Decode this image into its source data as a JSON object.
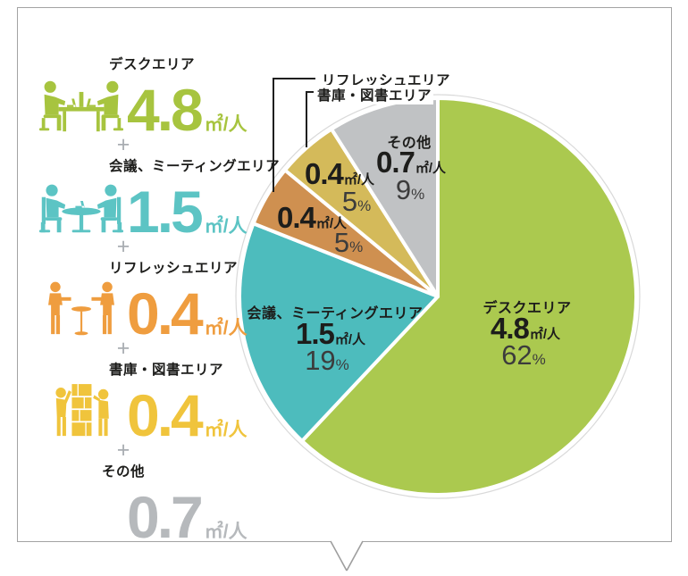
{
  "labels": {
    "plus": "+",
    "percent_sign": "%"
  },
  "panel": {
    "shape": "speech-bubble",
    "border_color": "#a3a3a3"
  },
  "chart_data": {
    "type": "pie",
    "title": "",
    "direction": "clockwise",
    "start_angle_deg_from_top": 0,
    "legend_position": "left",
    "slices": [
      {
        "key": "desk-area",
        "label": "デスクエリア",
        "value_text": "4.8",
        "unit": "㎡/人",
        "percent": 62,
        "color": "#abc94f",
        "legend_color": "#a7c43f",
        "icon": "desk-workers-icon"
      },
      {
        "key": "meeting-area",
        "label": "会議、ミーティングエリア",
        "value_text": "1.5",
        "unit": "㎡/人",
        "percent": 19,
        "color": "#4dbcbd",
        "legend_color": "#5cc4c4",
        "icon": "meeting-table-icon"
      },
      {
        "key": "refresh-area",
        "label": "リフレッシュエリア",
        "value_text": "0.4",
        "unit": "㎡/人",
        "percent": 5,
        "color": "#cf9050",
        "legend_color": "#ef9d3f",
        "icon": "standing-table-icon"
      },
      {
        "key": "library-area",
        "label": "書庫・図書エリア",
        "value_text": "0.4",
        "unit": "㎡/人",
        "percent": 5,
        "color": "#d4ba5a",
        "legend_color": "#f0c43c",
        "icon": "bookshelf-icon"
      },
      {
        "key": "other",
        "label": "その他",
        "value_text": "0.7",
        "unit": "㎡/人",
        "percent": 9,
        "color": "#c0c2c4",
        "legend_color": "#b6b9bc",
        "icon": null
      }
    ]
  }
}
